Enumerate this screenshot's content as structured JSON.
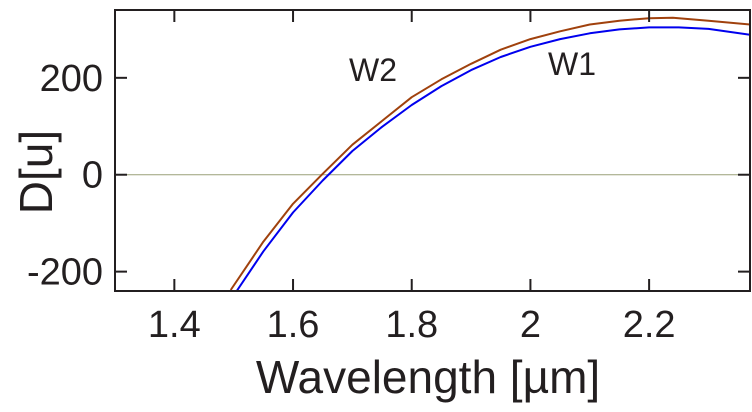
{
  "chart_data": {
    "type": "line",
    "xlabel": "Wavelength [µm]",
    "ylabel": "D[u]",
    "xlim": [
      1.3,
      2.37
    ],
    "ylim": [
      -240,
      340
    ],
    "xticks": [
      1.4,
      1.6,
      1.8,
      2.0,
      2.2
    ],
    "xtick_labels": [
      "1.4",
      "1.6",
      "1.8",
      "2",
      "2.2"
    ],
    "yticks": [
      -200,
      0,
      200
    ],
    "ytick_labels": [
      "-200",
      "0",
      "200"
    ],
    "zero_line": {
      "y": 0,
      "color": "#9aa079"
    },
    "grid": false,
    "series": [
      {
        "name": "W2",
        "color": "#a0410d",
        "x": [
          1.495,
          1.55,
          1.6,
          1.65,
          1.7,
          1.75,
          1.8,
          1.85,
          1.9,
          1.95,
          2.0,
          2.05,
          2.1,
          2.15,
          2.2,
          2.24,
          2.3,
          2.37
        ],
        "y": [
          -238,
          -138,
          -60,
          2,
          62,
          111,
          160,
          197,
          229,
          258,
          280,
          296,
          310,
          318,
          323,
          324,
          318,
          310
        ]
      },
      {
        "name": "W1",
        "color": "#0000ee",
        "x": [
          1.505,
          1.55,
          1.6,
          1.65,
          1.7,
          1.75,
          1.8,
          1.85,
          1.9,
          1.95,
          2.0,
          2.05,
          2.1,
          2.15,
          2.2,
          2.25,
          2.3,
          2.37
        ],
        "y": [
          -240,
          -158,
          -78,
          -12,
          49,
          99,
          144,
          183,
          216,
          243,
          264,
          280,
          292,
          300,
          304,
          304,
          301,
          289
        ]
      }
    ]
  }
}
